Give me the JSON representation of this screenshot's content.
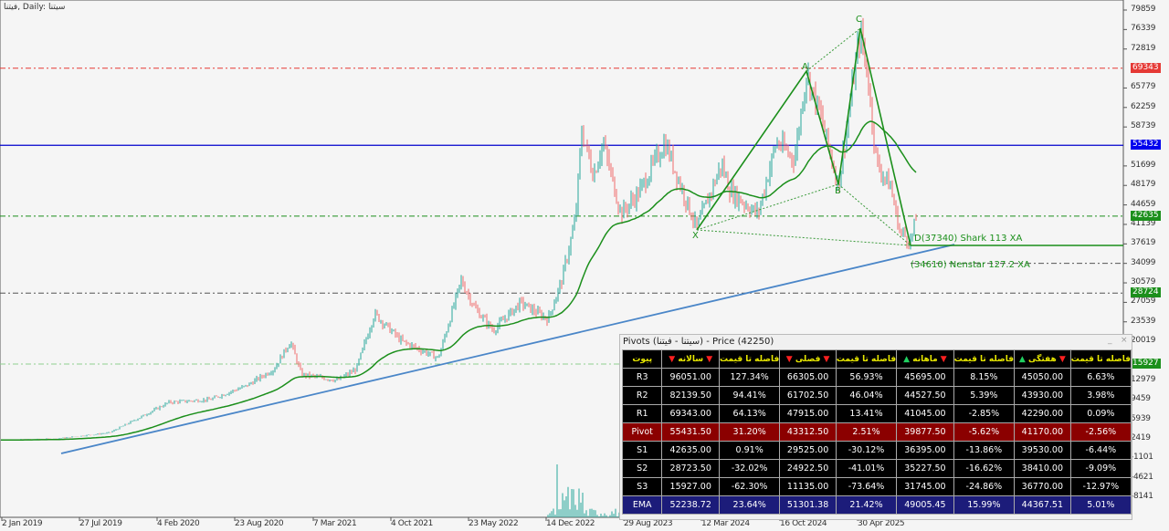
{
  "window_title": "فیتنا, Daily: سیتنا",
  "colors": {
    "bull": "#26a69a",
    "bear": "#ef6b6b",
    "ma": "#1b8f1b",
    "resistance_line": "#e53935",
    "pivot_line": "#0000cc",
    "support_line": "#1b8f1b",
    "trendline": "#4a86c8"
  },
  "price_axis": {
    "ticks": [
      "79859",
      "76339",
      "72819",
      "65779",
      "62259",
      "58739",
      "51699",
      "48179",
      "44659",
      "41139",
      "37619",
      "34099",
      "30579",
      "27059",
      "23539",
      "20019",
      "12979",
      "9459",
      "5939",
      "2419",
      "-1101",
      "-4621",
      "-8141"
    ],
    "tags": [
      {
        "value": "69343",
        "color": "#e53935"
      },
      {
        "value": "55432",
        "color": "#0000ee"
      },
      {
        "value": "42635",
        "color": "#1b8f1b"
      },
      {
        "value": "28724",
        "color": "#1b8f1b"
      },
      {
        "value": "15927",
        "color": "#1b8f1b"
      }
    ]
  },
  "time_axis": [
    "2 Jan 2019",
    "27 Jul 2019",
    "4 Feb 2020",
    "23 Aug 2020",
    "7 Mar 2021",
    "4 Oct 2021",
    "23 May 2022",
    "14 Dec 2022",
    "29 Aug 2023",
    "12 Mar 2024",
    "16 Oct 2024",
    "30 Apr 2025"
  ],
  "pattern": {
    "points": {
      "X": "X",
      "A": "A",
      "B": "B",
      "C": "C"
    },
    "d_label": "D(37340) Shark 113 XA",
    "alt_label": "(34610) Nenstar 127.2 XA"
  },
  "pivots": {
    "title": "Pivots (سیتنا - فیتنا) - Price (42250)",
    "minimize": "_",
    "close": "×",
    "headers": [
      {
        "label": "پیوت"
      },
      {
        "label": "سالانه",
        "left": "▼",
        "right": "▼",
        "lc": "dn",
        "rc": "dn"
      },
      {
        "label": "فاصله تا قیمت"
      },
      {
        "label": "فصلی",
        "left": "▼",
        "right": "▼",
        "lc": "dn",
        "rc": "dn"
      },
      {
        "label": "فاصله تا قیمت"
      },
      {
        "label": "ماهانه",
        "left": "▲",
        "right": "▼",
        "lc": "up",
        "rc": "dn"
      },
      {
        "label": "فاصله تا قیمت"
      },
      {
        "label": "هفتگی",
        "left": "▲",
        "right": "▼",
        "lc": "up",
        "rc": "dn"
      },
      {
        "label": "فاصله تا قیمت"
      }
    ],
    "rows": [
      [
        "R3",
        "96051.00",
        "127.34%",
        "66305.00",
        "56.93%",
        "45695.00",
        "8.15%",
        "45050.00",
        "6.63%"
      ],
      [
        "R2",
        "82139.50",
        "94.41%",
        "61702.50",
        "46.04%",
        "44527.50",
        "5.39%",
        "43930.00",
        "3.98%"
      ],
      [
        "R1",
        "69343.00",
        "64.13%",
        "47915.00",
        "13.41%",
        "41045.00",
        "-2.85%",
        "42290.00",
        "0.09%"
      ],
      [
        "Pivot",
        "55431.50",
        "31.20%",
        "43312.50",
        "2.51%",
        "39877.50",
        "-5.62%",
        "41170.00",
        "-2.56%"
      ],
      [
        "S1",
        "42635.00",
        "0.91%",
        "29525.00",
        "-30.12%",
        "36395.00",
        "-13.86%",
        "39530.00",
        "-6.44%"
      ],
      [
        "S2",
        "28723.50",
        "-32.02%",
        "24922.50",
        "-41.01%",
        "35227.50",
        "-16.62%",
        "38410.00",
        "-9.09%"
      ],
      [
        "S3",
        "15927.00",
        "-62.30%",
        "11135.00",
        "-73.64%",
        "31745.00",
        "-24.86%",
        "36770.00",
        "-12.97%"
      ],
      [
        "EMA",
        "52238.72",
        "23.64%",
        "51301.38",
        "21.42%",
        "49005.45",
        "15.99%",
        "44367.51",
        "5.01%"
      ]
    ]
  }
}
